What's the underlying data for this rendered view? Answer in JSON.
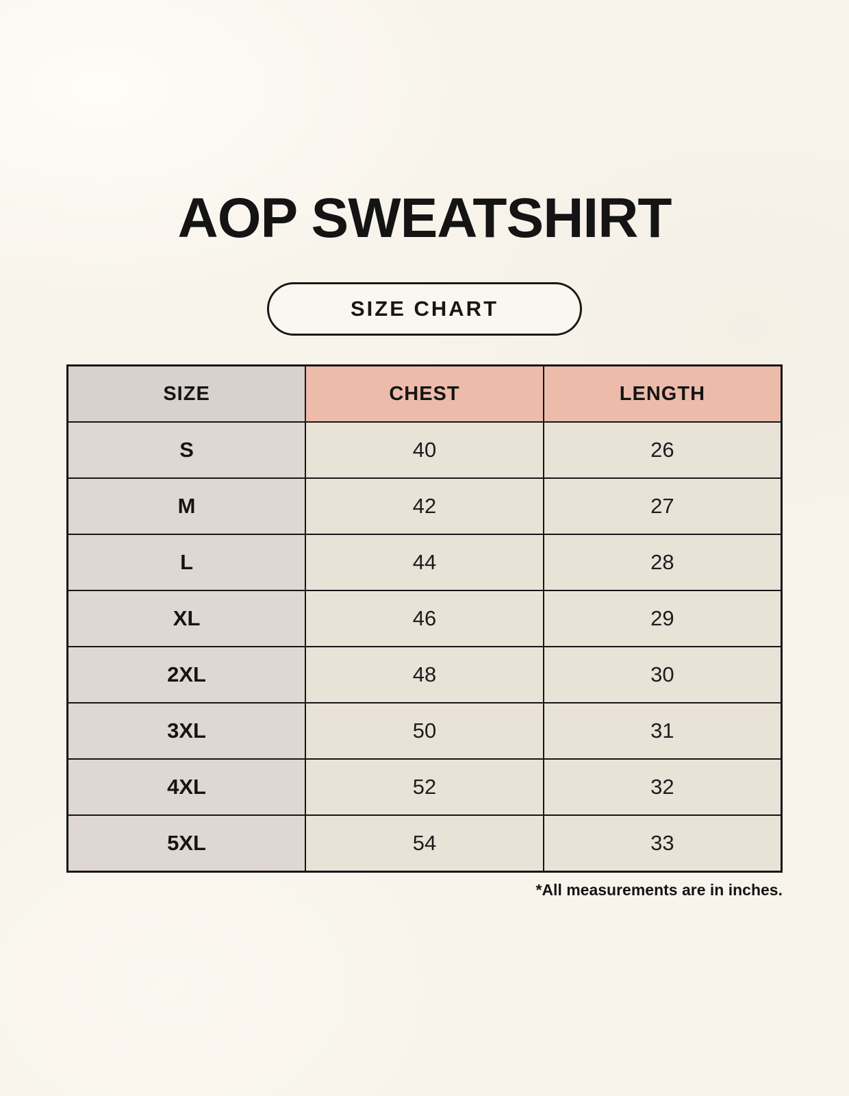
{
  "page": {
    "title": "AOP SWEATSHIRT",
    "badge_label": "SIZE CHART",
    "footnote": "*All measurements are in inches."
  },
  "chart_data": {
    "type": "table",
    "title": "AOP SWEATSHIRT",
    "subtitle": "SIZE CHART",
    "columns": [
      "SIZE",
      "CHEST",
      "LENGTH"
    ],
    "rows": [
      [
        "S",
        40,
        26
      ],
      [
        "M",
        42,
        27
      ],
      [
        "L",
        44,
        28
      ],
      [
        "XL",
        46,
        29
      ],
      [
        "2XL",
        48,
        30
      ],
      [
        "3XL",
        50,
        31
      ],
      [
        "4XL",
        52,
        32
      ],
      [
        "5XL",
        54,
        33
      ]
    ],
    "units": "inches",
    "note": "*All measurements are in inches."
  },
  "colors": {
    "background": "#f8f4ec",
    "header_size_bg": "#d8d1cd",
    "header_measure_bg": "#edbbaa",
    "size_column_bg": "#ded7d2",
    "data_cell_bg": "#e9e2d7",
    "border": "#161616",
    "text": "#141414"
  }
}
